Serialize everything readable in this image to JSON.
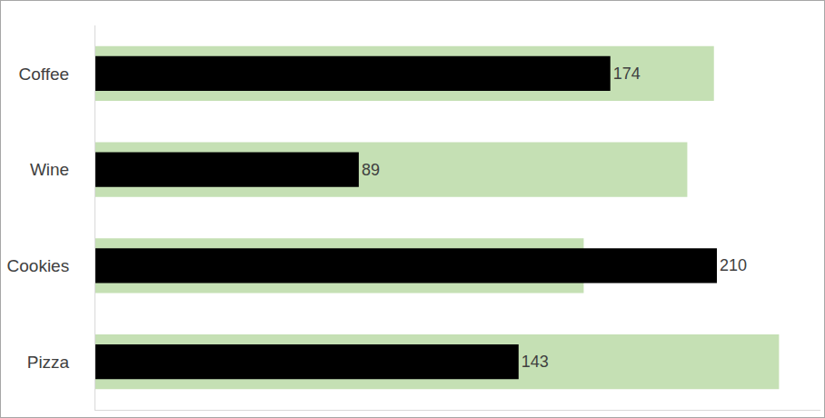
{
  "chart_data": {
    "type": "bar",
    "orientation": "horizontal",
    "categories": [
      "Coffee",
      "Wine",
      "Cookies",
      "Pizza"
    ],
    "series": [
      {
        "color": "#c5e0b4",
        "values": [
          209,
          200,
          165,
          231
        ]
      },
      {
        "color": "#000000",
        "values": [
          174,
          89,
          210,
          143
        ],
        "data_labels": true
      }
    ],
    "xlim": [
      0,
      245
    ],
    "tick_labels": "y",
    "grid": false
  }
}
